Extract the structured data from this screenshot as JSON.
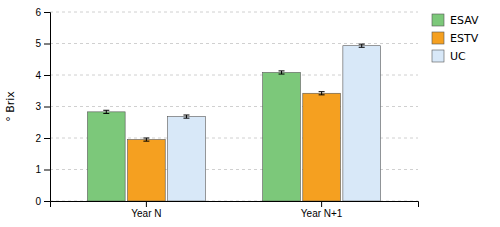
{
  "chart_data": {
    "type": "bar",
    "categories": [
      "Year N",
      "Year N+1"
    ],
    "series": [
      {
        "name": "ESAV",
        "color": "#7CC87A",
        "values": [
          2.83,
          4.08
        ],
        "errors": [
          0.05,
          0.05
        ]
      },
      {
        "name": "ESTV",
        "color": "#F5A020",
        "values": [
          1.95,
          3.42
        ],
        "errors": [
          0.05,
          0.05
        ]
      },
      {
        "name": "UC",
        "color": "#D8E8F8",
        "values": [
          2.68,
          4.93
        ],
        "errors": [
          0.05,
          0.05
        ]
      }
    ],
    "ylabel": "° Brix",
    "ylim": [
      0,
      6
    ],
    "yticks": [
      0,
      1,
      2,
      3,
      4,
      5,
      6
    ],
    "grid": true,
    "legend": "upper right"
  }
}
